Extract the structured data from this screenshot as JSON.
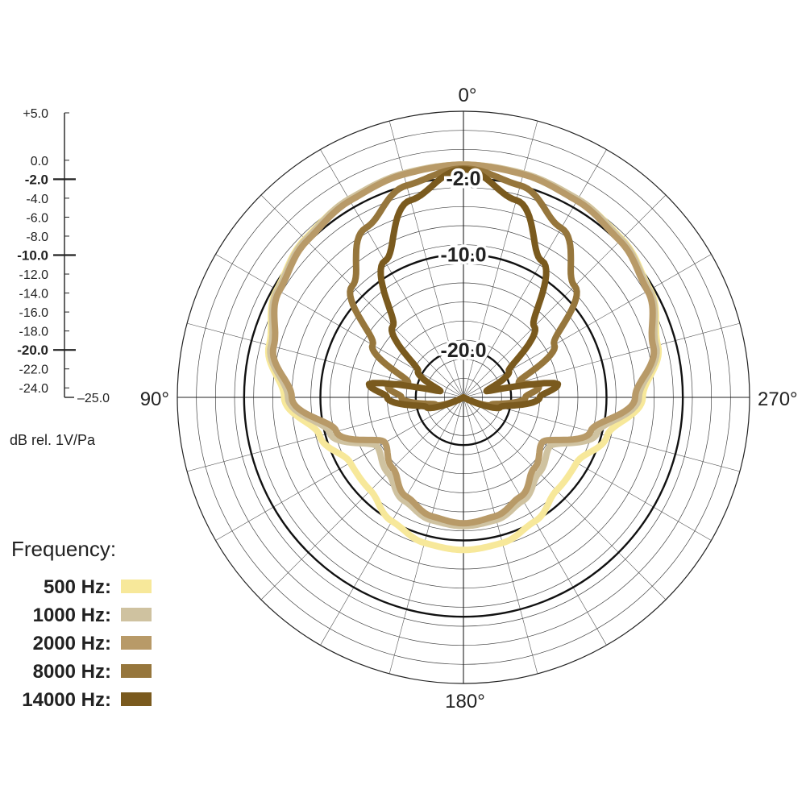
{
  "chart_data": {
    "type": "polar-line",
    "unit_label": "dB rel. 1V/Pa",
    "angle_unit": "degrees",
    "angle_labels": [
      "0°",
      "90°",
      "180°",
      "270°"
    ],
    "scale": {
      "rmin": -25,
      "rmax": 5,
      "ticks": [
        {
          "value": 5,
          "label": "+5.0",
          "major": false
        },
        {
          "value": 0,
          "label": "0.0",
          "major": false
        },
        {
          "value": -2,
          "label": "-2.0",
          "major": true
        },
        {
          "value": -4,
          "label": "-4.0",
          "major": false
        },
        {
          "value": -6,
          "label": "-6.0",
          "major": false
        },
        {
          "value": -8,
          "label": "-8.0",
          "major": false
        },
        {
          "value": -10,
          "label": "-10.0",
          "major": true
        },
        {
          "value": -12,
          "label": "-12.0",
          "major": false
        },
        {
          "value": -14,
          "label": "-14.0",
          "major": false
        },
        {
          "value": -16,
          "label": "-16.0",
          "major": false
        },
        {
          "value": -18,
          "label": "-18.0",
          "major": false
        },
        {
          "value": -20,
          "label": "-20.0",
          "major": true
        },
        {
          "value": -22,
          "label": "-22.0",
          "major": false
        },
        {
          "value": -24,
          "label": "-24.0",
          "major": false
        },
        {
          "value": -25,
          "label": "–25.0",
          "major": false
        }
      ]
    },
    "rings": [
      {
        "value": -2,
        "label": "-2.0"
      },
      {
        "value": -10,
        "label": "-10.0"
      },
      {
        "value": -20,
        "label": "-20.0"
      }
    ],
    "legend_title": "Frequency:",
    "series": [
      {
        "name": "500 Hz:",
        "color": "#f7e89a",
        "pattern": "supercardioid",
        "angles": [
          0,
          15,
          30,
          45,
          60,
          75,
          90,
          105,
          120,
          135,
          150,
          165,
          180
        ],
        "values": [
          -0.6,
          -0.7,
          -1.0,
          -1.5,
          -2.4,
          -3.9,
          -6.2,
          -9.4,
          -11.3,
          -11.2,
          -10.0,
          -9.2,
          -9.0
        ]
      },
      {
        "name": "1000 Hz:",
        "color": "#cfc2a0",
        "pattern": "supercardioid",
        "angles": [
          0,
          15,
          30,
          45,
          60,
          75,
          90,
          105,
          120,
          135,
          150,
          165,
          180
        ],
        "values": [
          -0.6,
          -0.7,
          -1.0,
          -1.6,
          -2.5,
          -4.1,
          -6.6,
          -10.5,
          -14.6,
          -13.8,
          -12.5,
          -11.7,
          -11.5
        ]
      },
      {
        "name": "2000 Hz:",
        "color": "#b89a68",
        "pattern": "supercardioid",
        "angles": [
          0,
          15,
          30,
          45,
          60,
          75,
          90,
          105,
          120,
          135,
          150,
          165,
          180
        ],
        "values": [
          -0.6,
          -0.8,
          -1.2,
          -1.8,
          -2.7,
          -4.4,
          -7.0,
          -11.2,
          -15.5,
          -14.5,
          -13.0,
          -12.1,
          -11.8
        ]
      },
      {
        "name": "8000 Hz:",
        "color": "#96763c",
        "pattern": "lobed",
        "angles": [
          0,
          15,
          30,
          45,
          60,
          75,
          82,
          90,
          105,
          120,
          180
        ],
        "values": [
          -1.0,
          -2.0,
          -4.5,
          -8.5,
          -14.0,
          -19.0,
          -17.0,
          -18.5,
          -22.0,
          -25.0,
          -25.0
        ]
      },
      {
        "name": "14000 Hz:",
        "color": "#7a5a1e",
        "pattern": "lobed",
        "angles": [
          0,
          15,
          30,
          45,
          60,
          75,
          82,
          90,
          105,
          120,
          180
        ],
        "values": [
          -1.1,
          -3.6,
          -8.5,
          -14.5,
          -19.5,
          -22.5,
          -15.0,
          -17.0,
          -21.0,
          -25.0,
          -25.0
        ]
      }
    ]
  }
}
